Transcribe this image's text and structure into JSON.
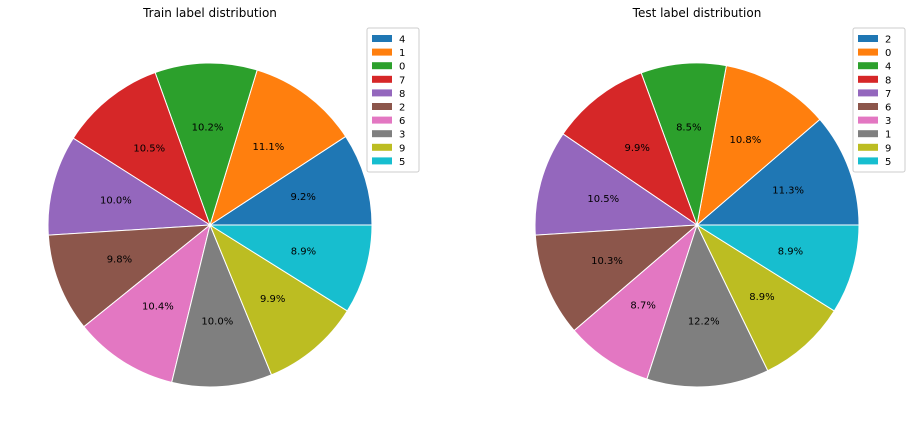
{
  "chart_data": [
    {
      "type": "pie",
      "title": "Train label distribution",
      "categories": [
        "4",
        "1",
        "0",
        "7",
        "8",
        "2",
        "6",
        "3",
        "9",
        "5"
      ],
      "values": [
        9.2,
        11.1,
        10.2,
        10.5,
        10.0,
        9.8,
        10.4,
        10.0,
        9.9,
        8.9
      ],
      "value_labels": [
        "9.2%",
        "11.1%",
        "10.2%",
        "10.5%",
        "10.0%",
        "9.8%",
        "10.4%",
        "10.0%",
        "9.9%",
        "8.9%"
      ],
      "colors": [
        "#1f77b4",
        "#ff7f0e",
        "#2ca02c",
        "#d62728",
        "#9467bd",
        "#8c564b",
        "#e377c2",
        "#7f7f7f",
        "#bcbd22",
        "#17becf"
      ],
      "start_angle_deg": 0,
      "direction": "counterclockwise",
      "legend_position": "top-right"
    },
    {
      "type": "pie",
      "title": "Test label distribution",
      "categories": [
        "2",
        "0",
        "4",
        "8",
        "7",
        "6",
        "3",
        "1",
        "9",
        "5"
      ],
      "values": [
        11.3,
        10.8,
        8.5,
        9.9,
        10.5,
        10.3,
        8.7,
        12.2,
        8.9,
        8.9
      ],
      "value_labels": [
        "11.3%",
        "10.8%",
        "8.5%",
        "9.9%",
        "10.5%",
        "10.3%",
        "8.7%",
        "12.2%",
        "8.9%",
        "8.9%"
      ],
      "colors": [
        "#1f77b4",
        "#ff7f0e",
        "#2ca02c",
        "#d62728",
        "#9467bd",
        "#8c564b",
        "#e377c2",
        "#7f7f7f",
        "#bcbd22",
        "#17becf"
      ],
      "start_angle_deg": 0,
      "direction": "counterclockwise",
      "legend_position": "top-right"
    }
  ]
}
